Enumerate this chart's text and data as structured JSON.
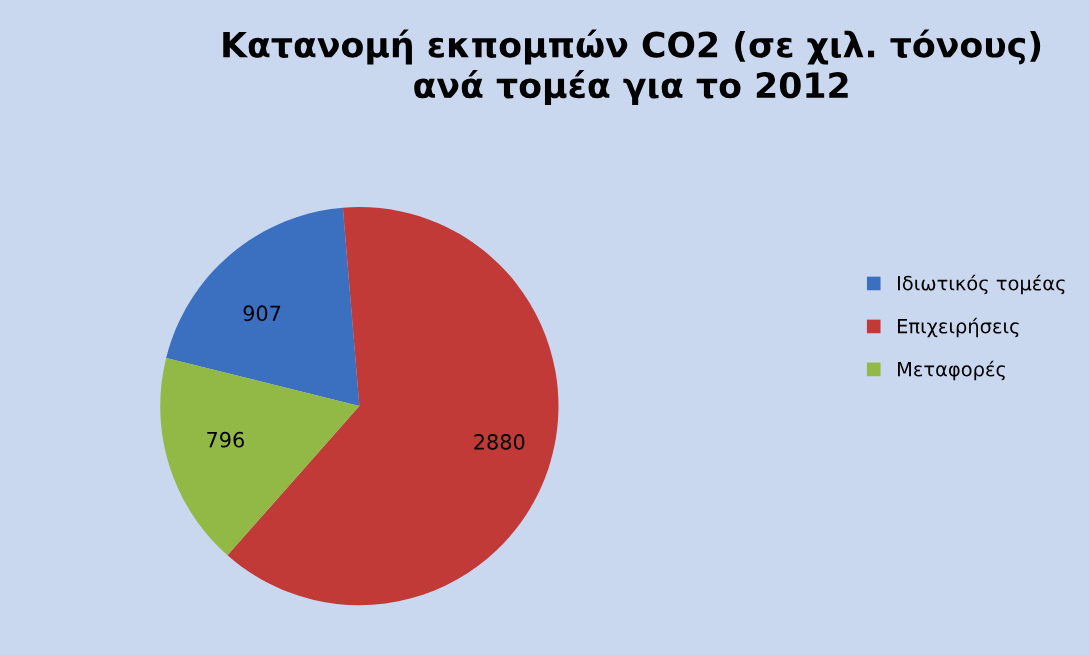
{
  "chart_data": {
    "type": "pie",
    "title": "Κατανομή εκπομπών CO2 (σε χιλ. τόνους)\nανά τομέα για το 2012",
    "categories": [
      "Ιδιωτικός τομέας",
      "Επιχειρήσεις",
      "Μεταφορές"
    ],
    "values": [
      907,
      2880,
      796
    ],
    "colors": [
      "#3a70bf",
      "#c23a38",
      "#92b845"
    ],
    "data_labels": true,
    "legend": "right"
  }
}
